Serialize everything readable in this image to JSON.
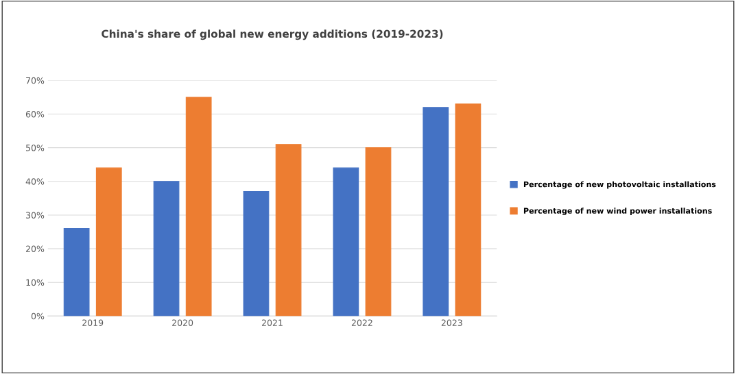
{
  "chart_data": {
    "type": "bar",
    "title": "China's share of global new energy additions (2019-2023)",
    "categories": [
      "2019",
      "2020",
      "2021",
      "2022",
      "2023"
    ],
    "series": [
      {
        "name": "Percentage of new photovoltaic installations",
        "color": "#4472c4",
        "values": [
          26,
          40,
          37,
          44,
          62
        ]
      },
      {
        "name": "Percentage of new wind power installations",
        "color": "#ed7d31",
        "values": [
          44,
          65,
          51,
          50,
          63
        ]
      }
    ],
    "ylim": [
      0,
      70
    ],
    "yticks": [
      {
        "value": 0,
        "label": "0%"
      },
      {
        "value": 10,
        "label": "10%"
      },
      {
        "value": 20,
        "label": "20%"
      },
      {
        "value": 30,
        "label": "30%"
      },
      {
        "value": 40,
        "label": "40%"
      },
      {
        "value": 50,
        "label": "50%"
      },
      {
        "value": 60,
        "label": "60%"
      },
      {
        "value": 70,
        "label": "70%"
      }
    ],
    "grid": "y",
    "legend": "right"
  }
}
